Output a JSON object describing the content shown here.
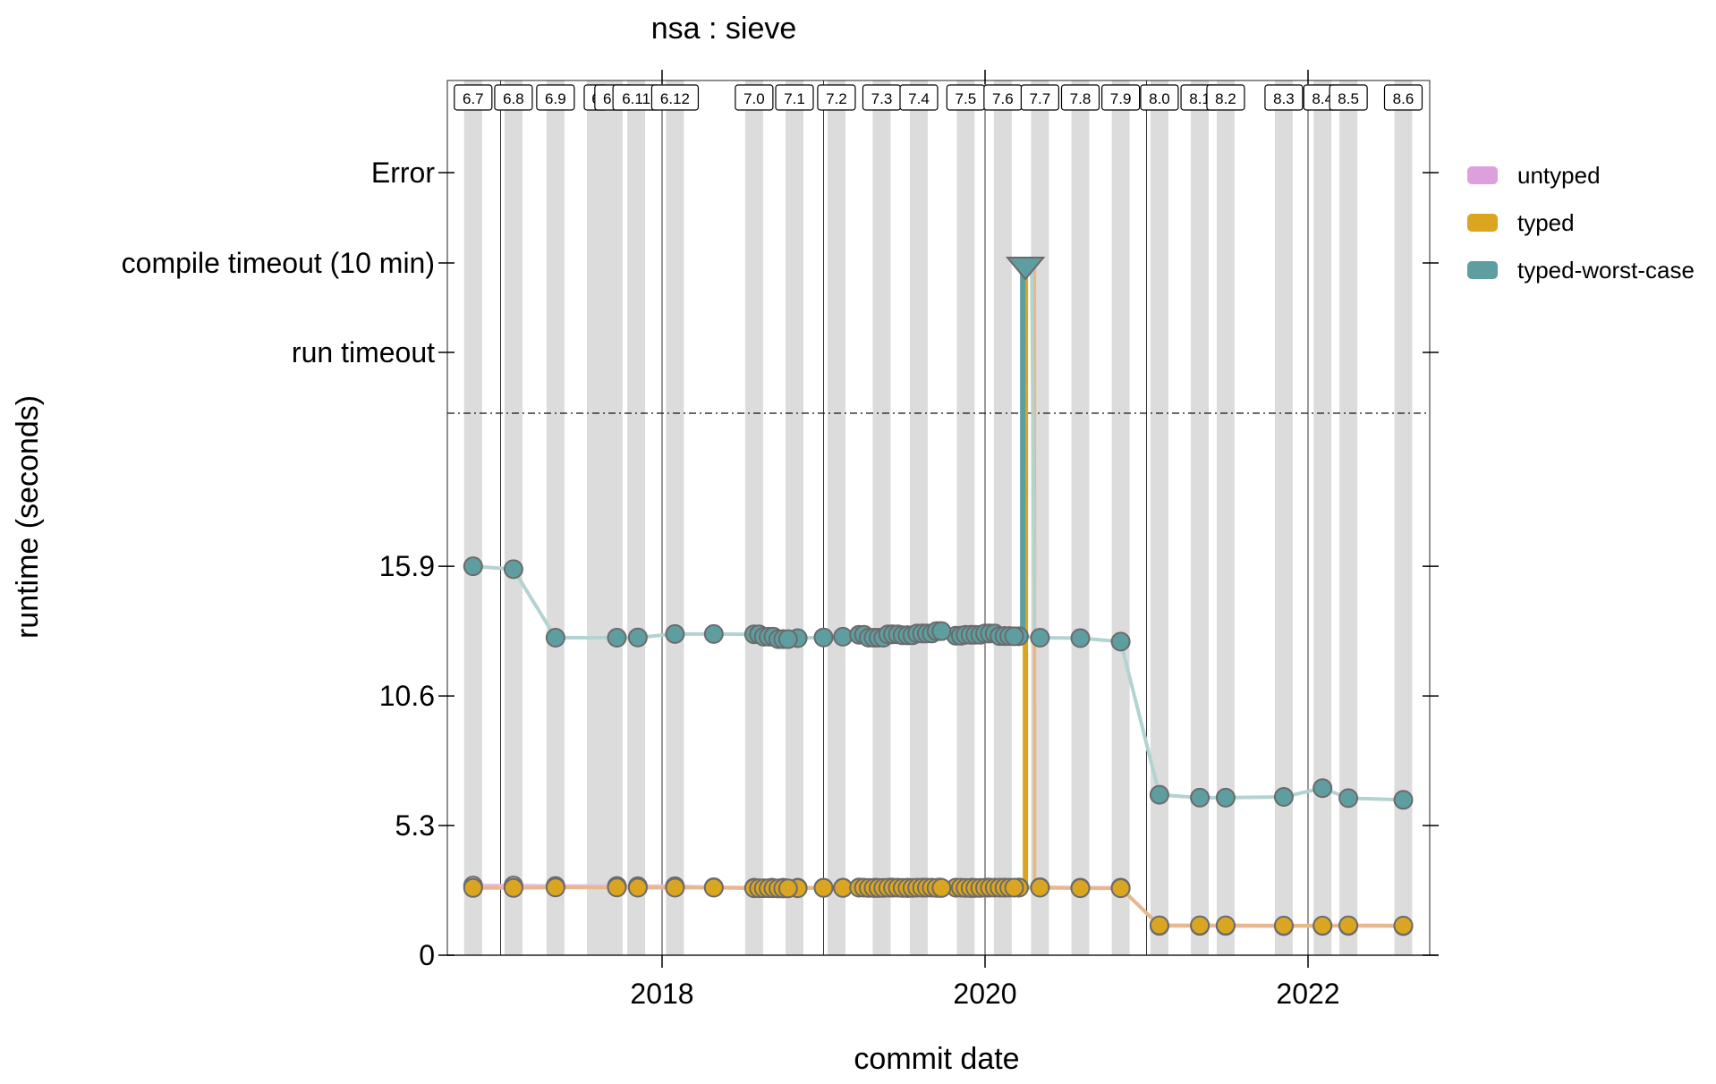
{
  "chart_data": {
    "type": "line",
    "title": "nsa : sieve",
    "xlabel": "commit date",
    "ylabel": "runtime (seconds)",
    "x_ticks": [
      {
        "label": "2018",
        "t": 2018.0
      },
      {
        "label": "2020",
        "t": 2020.0
      },
      {
        "label": "2022",
        "t": 2022.0
      }
    ],
    "y_numeric_ticks": [
      {
        "label": "0",
        "value": 0
      },
      {
        "label": "5.3",
        "value": 5.3
      },
      {
        "label": "10.6",
        "value": 10.6
      },
      {
        "label": "15.9",
        "value": 15.9
      }
    ],
    "y_special_ticks": [
      {
        "key": "run_timeout",
        "label": "run timeout"
      },
      {
        "key": "compile_timeout",
        "label": "compile timeout (10 min)"
      },
      {
        "key": "error",
        "label": "Error"
      }
    ],
    "xlim": [
      2016.65,
      2022.8
    ],
    "year_lines": [
      2017,
      2018,
      2019,
      2020,
      2021,
      2022
    ],
    "grid": false,
    "legend_position": "right",
    "versions": [
      {
        "label": "6.7",
        "t": 2016.83
      },
      {
        "label": "6.8",
        "t": 2017.08
      },
      {
        "label": "6.9",
        "t": 2017.34
      },
      {
        "label": "6",
        "t": 2017.59
      },
      {
        "label": "6.1",
        "t": 2017.7
      },
      {
        "label": "6.11",
        "t": 2017.84
      },
      {
        "label": "6.12",
        "t": 2018.08
      },
      {
        "label": "7.0",
        "t": 2018.57
      },
      {
        "label": "7.1",
        "t": 2018.82
      },
      {
        "label": "7.2",
        "t": 2019.08
      },
      {
        "label": "7.3",
        "t": 2019.36
      },
      {
        "label": "7.4",
        "t": 2019.59
      },
      {
        "label": "7.5",
        "t": 2019.88
      },
      {
        "label": "7.6",
        "t": 2020.11
      },
      {
        "label": "7.7",
        "t": 2020.34
      },
      {
        "label": "7.8",
        "t": 2020.59
      },
      {
        "label": "7.9",
        "t": 2020.84
      },
      {
        "label": "8.0",
        "t": 2021.08
      },
      {
        "label": "8.1",
        "t": 2021.33
      },
      {
        "label": "8.2",
        "t": 2021.49
      },
      {
        "label": "8.3",
        "t": 2021.85
      },
      {
        "label": "8.4",
        "t": 2022.09
      },
      {
        "label": "8.5",
        "t": 2022.25
      },
      {
        "label": "8.6",
        "t": 2022.59
      }
    ],
    "series": [
      {
        "name": "untyped",
        "color": "#DDA0DD",
        "points": [
          {
            "t": 2016.83,
            "y": 2.85
          },
          {
            "t": 2017.08,
            "y": 2.85
          },
          {
            "t": 2017.34,
            "y": 2.83
          },
          {
            "t": 2017.72,
            "y": 2.83
          },
          {
            "t": 2017.85,
            "y": 2.82
          },
          {
            "t": 2018.08,
            "y": 2.82
          },
          {
            "t": 2018.32,
            "y": 2.78
          },
          {
            "t": 2018.57,
            "y": 2.76
          },
          {
            "t": 2018.68,
            "y": 2.76
          },
          {
            "t": 2018.75,
            "y": 2.76
          },
          {
            "t": 2018.84,
            "y": 2.76
          },
          {
            "t": 2019.0,
            "y": 2.76
          },
          {
            "t": 2019.12,
            "y": 2.76
          },
          {
            "t": 2019.22,
            "y": 2.77
          },
          {
            "t": 2019.32,
            "y": 2.76
          },
          {
            "t": 2019.42,
            "y": 2.77
          },
          {
            "t": 2019.52,
            "y": 2.76
          },
          {
            "t": 2019.62,
            "y": 2.76
          },
          {
            "t": 2019.72,
            "y": 2.77
          },
          {
            "t": 2019.82,
            "y": 2.76
          },
          {
            "t": 2019.92,
            "y": 2.76
          },
          {
            "t": 2020.02,
            "y": 2.77
          },
          {
            "t": 2020.12,
            "y": 2.76
          },
          {
            "t": 2020.21,
            "y": 2.77
          },
          {
            "t": 2020.34,
            "y": 2.78
          },
          {
            "t": 2020.59,
            "y": 2.76
          },
          {
            "t": 2020.84,
            "y": 2.76
          },
          {
            "t": 2021.08,
            "y": 1.2
          },
          {
            "t": 2021.33,
            "y": 1.2
          },
          {
            "t": 2021.49,
            "y": 1.2
          },
          {
            "t": 2021.85,
            "y": 1.19
          },
          {
            "t": 2022.09,
            "y": 1.2
          },
          {
            "t": 2022.25,
            "y": 1.2
          },
          {
            "t": 2022.59,
            "y": 1.19
          }
        ]
      },
      {
        "name": "typed",
        "color": "#DAA520",
        "points": [
          {
            "t": 2016.83,
            "y": 2.75
          },
          {
            "t": 2017.08,
            "y": 2.75
          },
          {
            "t": 2017.34,
            "y": 2.77
          },
          {
            "t": 2017.72,
            "y": 2.77
          },
          {
            "t": 2017.85,
            "y": 2.76
          },
          {
            "t": 2018.08,
            "y": 2.76
          },
          {
            "t": 2018.32,
            "y": 2.76
          },
          {
            "t": 2018.57,
            "y": 2.74
          },
          {
            "t": 2018.68,
            "y": 2.74
          },
          {
            "t": 2018.75,
            "y": 2.73
          },
          {
            "t": 2018.84,
            "y": 2.74
          },
          {
            "t": 2019.0,
            "y": 2.75
          },
          {
            "t": 2019.12,
            "y": 2.75
          },
          {
            "t": 2019.22,
            "y": 2.76
          },
          {
            "t": 2019.32,
            "y": 2.75
          },
          {
            "t": 2019.42,
            "y": 2.76
          },
          {
            "t": 2019.52,
            "y": 2.75
          },
          {
            "t": 2019.62,
            "y": 2.76
          },
          {
            "t": 2019.72,
            "y": 2.75
          },
          {
            "t": 2019.82,
            "y": 2.76
          },
          {
            "t": 2019.92,
            "y": 2.75
          },
          {
            "t": 2020.02,
            "y": 2.76
          },
          {
            "t": 2020.12,
            "y": 2.76
          },
          {
            "t": 2020.21,
            "y": 2.76
          },
          {
            "t": 2020.34,
            "y": 2.76
          },
          {
            "t": 2020.59,
            "y": 2.74
          },
          {
            "t": 2020.84,
            "y": 2.74
          },
          {
            "t": 2021.08,
            "y": 1.22
          },
          {
            "t": 2021.33,
            "y": 1.22
          },
          {
            "t": 2021.49,
            "y": 1.22
          },
          {
            "t": 2021.85,
            "y": 1.21
          },
          {
            "t": 2022.09,
            "y": 1.21
          },
          {
            "t": 2022.25,
            "y": 1.22
          },
          {
            "t": 2022.59,
            "y": 1.21
          }
        ],
        "timeouts": [
          {
            "t": 2020.25,
            "y": "compile_timeout"
          }
        ]
      },
      {
        "name": "typed-worst-case",
        "color": "#5F9EA0",
        "points": [
          {
            "t": 2016.83,
            "y": 15.9
          },
          {
            "t": 2017.08,
            "y": 15.78
          },
          {
            "t": 2017.34,
            "y": 12.98
          },
          {
            "t": 2017.72,
            "y": 12.98
          },
          {
            "t": 2017.85,
            "y": 12.99
          },
          {
            "t": 2018.08,
            "y": 13.13
          },
          {
            "t": 2018.32,
            "y": 13.13
          },
          {
            "t": 2018.57,
            "y": 13.12
          },
          {
            "t": 2018.68,
            "y": 13.02
          },
          {
            "t": 2018.75,
            "y": 12.92
          },
          {
            "t": 2018.84,
            "y": 12.96
          },
          {
            "t": 2019.0,
            "y": 12.99
          },
          {
            "t": 2019.12,
            "y": 13.02
          },
          {
            "t": 2019.22,
            "y": 13.1
          },
          {
            "t": 2019.32,
            "y": 12.98
          },
          {
            "t": 2019.42,
            "y": 13.12
          },
          {
            "t": 2019.52,
            "y": 13.08
          },
          {
            "t": 2019.62,
            "y": 13.15
          },
          {
            "t": 2019.72,
            "y": 13.25
          },
          {
            "t": 2019.82,
            "y": 13.06
          },
          {
            "t": 2019.92,
            "y": 13.1
          },
          {
            "t": 2020.02,
            "y": 13.15
          },
          {
            "t": 2020.12,
            "y": 13.05
          },
          {
            "t": 2020.21,
            "y": 13.04
          },
          {
            "t": 2020.34,
            "y": 12.98
          },
          {
            "t": 2020.59,
            "y": 12.96
          },
          {
            "t": 2020.84,
            "y": 12.82
          },
          {
            "t": 2021.08,
            "y": 6.56
          },
          {
            "t": 2021.33,
            "y": 6.44
          },
          {
            "t": 2021.49,
            "y": 6.44
          },
          {
            "t": 2021.85,
            "y": 6.47
          },
          {
            "t": 2022.09,
            "y": 6.83
          },
          {
            "t": 2022.25,
            "y": 6.42
          },
          {
            "t": 2022.59,
            "y": 6.35
          }
        ],
        "timeouts": [
          {
            "t": 2020.25,
            "y": "compile_timeout"
          }
        ]
      }
    ]
  }
}
